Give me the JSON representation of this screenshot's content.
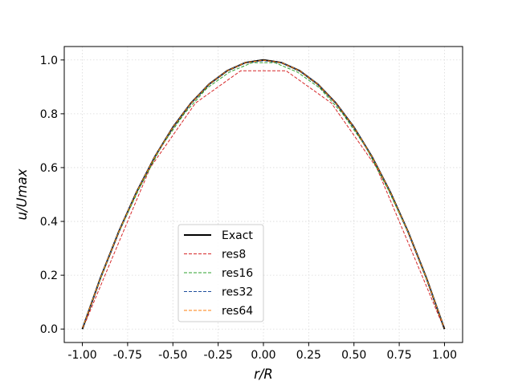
{
  "chart_data": {
    "type": "line",
    "title": "",
    "xlabel": "r/R",
    "ylabel": "u/Umax",
    "xlim": [
      -1.1,
      1.1
    ],
    "ylim": [
      -0.05,
      1.05
    ],
    "xticks": [
      "-1.00",
      "-0.75",
      "-0.50",
      "-0.25",
      "0.00",
      "0.25",
      "0.50",
      "0.75",
      "1.00"
    ],
    "yticks": [
      "0.0",
      "0.2",
      "0.4",
      "0.6",
      "0.8",
      "1.0"
    ],
    "grid": true,
    "legend_position": "lower center",
    "series": [
      {
        "name": "Exact",
        "color": "#000000",
        "style": "solid",
        "x": [
          -1.0,
          -0.9,
          -0.8,
          -0.7,
          -0.6,
          -0.5,
          -0.4,
          -0.3,
          -0.2,
          -0.1,
          0.0,
          0.1,
          0.2,
          0.3,
          0.4,
          0.5,
          0.6,
          0.7,
          0.8,
          0.9,
          1.0
        ],
        "y": [
          0.0,
          0.19,
          0.36,
          0.51,
          0.64,
          0.75,
          0.84,
          0.91,
          0.96,
          0.99,
          1.0,
          0.99,
          0.96,
          0.91,
          0.84,
          0.75,
          0.64,
          0.51,
          0.36,
          0.19,
          0.0
        ]
      },
      {
        "name": "res8",
        "color": "#d62728",
        "style": "dashed",
        "x": [
          -0.98,
          -0.875,
          -0.625,
          -0.375,
          -0.125,
          0.125,
          0.375,
          0.625,
          0.875,
          0.98
        ],
        "y": [
          0.03,
          0.2,
          0.6,
          0.84,
          0.96,
          0.96,
          0.84,
          0.6,
          0.2,
          0.03
        ]
      },
      {
        "name": "res16",
        "color": "#2ca02c",
        "style": "dashed",
        "x": [
          -0.99,
          -0.9375,
          -0.8125,
          -0.6875,
          -0.5625,
          -0.4375,
          -0.3125,
          -0.1875,
          -0.0625,
          0.0625,
          0.1875,
          0.3125,
          0.4375,
          0.5625,
          0.6875,
          0.8125,
          0.9375,
          0.99
        ],
        "y": [
          0.02,
          0.12,
          0.34,
          0.52,
          0.68,
          0.8,
          0.895,
          0.955,
          0.99,
          0.99,
          0.955,
          0.895,
          0.8,
          0.68,
          0.52,
          0.34,
          0.12,
          0.02
        ]
      },
      {
        "name": "res32",
        "color": "#1f4e9c",
        "style": "dashed",
        "x": [
          -0.995,
          -0.9,
          -0.8,
          -0.7,
          -0.6,
          -0.5,
          -0.4,
          -0.3,
          -0.2,
          -0.1,
          0.0,
          0.1,
          0.2,
          0.3,
          0.4,
          0.5,
          0.6,
          0.7,
          0.8,
          0.9,
          0.995
        ],
        "y": [
          0.01,
          0.19,
          0.36,
          0.51,
          0.64,
          0.75,
          0.84,
          0.91,
          0.96,
          0.99,
          0.997,
          0.99,
          0.96,
          0.91,
          0.84,
          0.75,
          0.64,
          0.51,
          0.36,
          0.19,
          0.01
        ]
      },
      {
        "name": "res64",
        "color": "#ff7f0e",
        "style": "dashed",
        "x": [
          -0.998,
          -0.9,
          -0.8,
          -0.7,
          -0.6,
          -0.5,
          -0.4,
          -0.3,
          -0.2,
          -0.1,
          0.0,
          0.1,
          0.2,
          0.3,
          0.4,
          0.5,
          0.6,
          0.7,
          0.8,
          0.9,
          0.998
        ],
        "y": [
          0.005,
          0.19,
          0.36,
          0.51,
          0.64,
          0.75,
          0.84,
          0.91,
          0.96,
          0.99,
          0.999,
          0.99,
          0.96,
          0.91,
          0.84,
          0.75,
          0.64,
          0.51,
          0.36,
          0.19,
          0.005
        ]
      }
    ]
  }
}
